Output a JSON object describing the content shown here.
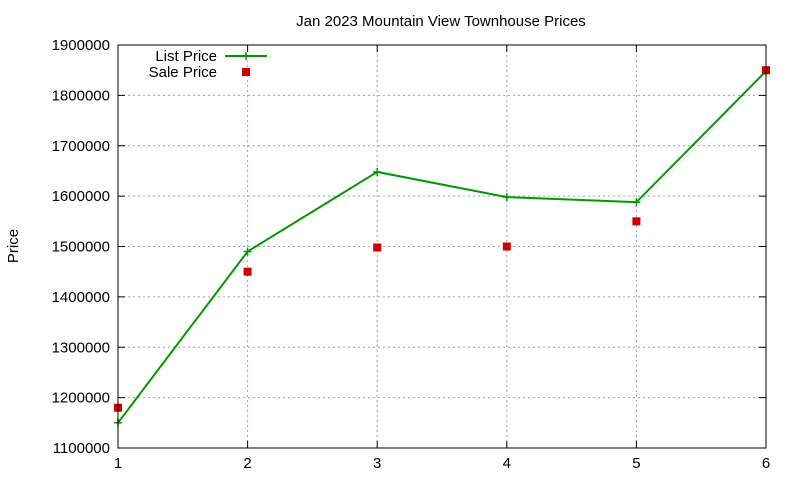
{
  "chart_data": {
    "type": "line",
    "title": "Jan 2023 Mountain View Townhouse Prices",
    "xlabel": "",
    "ylabel": "Price",
    "xlim": [
      1,
      6
    ],
    "ylim": [
      1100000,
      1900000
    ],
    "x_ticks": [
      1,
      2,
      3,
      4,
      5,
      6
    ],
    "y_ticks": [
      1100000,
      1200000,
      1300000,
      1400000,
      1500000,
      1600000,
      1700000,
      1800000,
      1900000
    ],
    "grid": true,
    "legend_position": "top-left",
    "x": [
      1,
      2,
      3,
      4,
      5,
      6
    ],
    "series": [
      {
        "name": "List Price",
        "style": "line+points",
        "color": "#009900",
        "values": [
          1150000,
          1490000,
          1648000,
          1598000,
          1588000,
          1848000
        ]
      },
      {
        "name": "Sale Price",
        "style": "points",
        "color": "#cc0000",
        "values": [
          1180000,
          1450000,
          1498000,
          1500000,
          1550000,
          1850000
        ]
      }
    ]
  }
}
